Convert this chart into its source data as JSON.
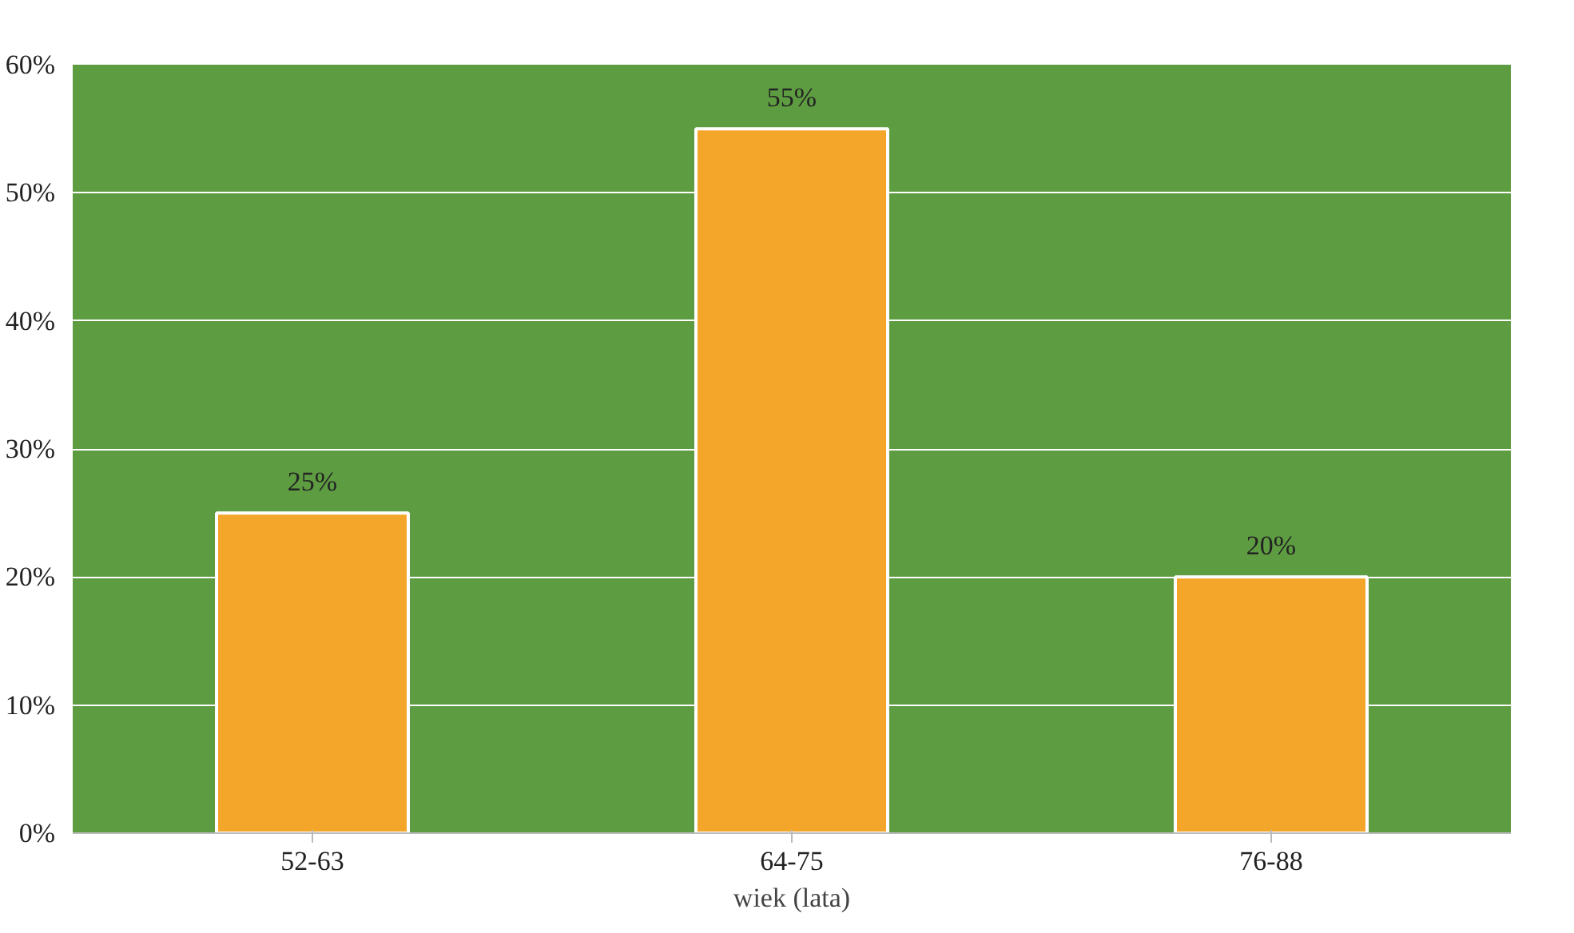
{
  "chart_data": {
    "type": "bar",
    "xlabel": "wiek (lata)",
    "categories": [
      "52-63",
      "64-75",
      "76-88"
    ],
    "values": [
      25,
      55,
      20
    ],
    "color": "#f4a62a",
    "value_labels": [
      "25%",
      "55%",
      "20%"
    ],
    "ylim": [
      0,
      60
    ],
    "yticks": [
      {
        "value": 0,
        "label": "0%"
      },
      {
        "value": 10,
        "label": "10%"
      },
      {
        "value": 20,
        "label": "20%"
      },
      {
        "value": 30,
        "label": "30%"
      },
      {
        "value": 40,
        "label": "40%"
      },
      {
        "value": 50,
        "label": "50%"
      },
      {
        "value": 60,
        "label": "60%"
      }
    ],
    "grid": "y"
  }
}
